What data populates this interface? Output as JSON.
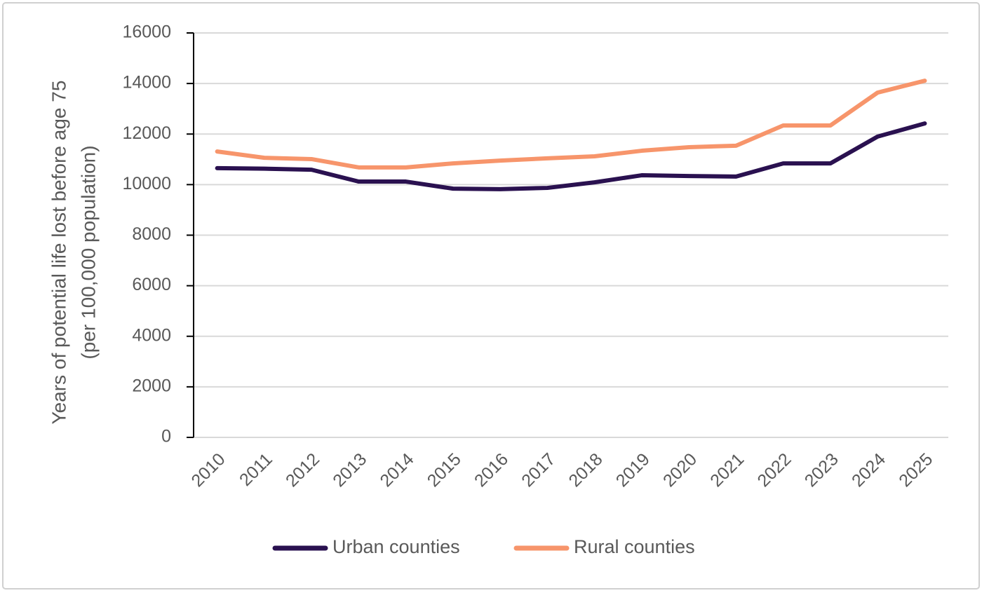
{
  "chart_data": {
    "type": "line",
    "ylabel": [
      "Years of potential life lost before age 75",
      "(per 100,000 population)"
    ],
    "categories": [
      "2010",
      "2011",
      "2012",
      "2013",
      "2014",
      "2015",
      "2016",
      "2017",
      "2018",
      "2019",
      "2020",
      "2021",
      "2022",
      "2023",
      "2024",
      "2025"
    ],
    "series": [
      {
        "name": "Urban counties",
        "color": "#2a1150",
        "values": [
          10650,
          10630,
          10590,
          10120,
          10120,
          9840,
          9820,
          9870,
          10090,
          10370,
          10340,
          10320,
          10840,
          10840,
          11900,
          12420
        ]
      },
      {
        "name": "Rural counties",
        "color": "#f7956b",
        "values": [
          11310,
          11060,
          11010,
          10680,
          10680,
          10840,
          10950,
          11040,
          11120,
          11340,
          11480,
          11540,
          12340,
          12340,
          13640,
          14110
        ]
      }
    ],
    "ylim": [
      0,
      16000
    ],
    "yticks": [
      0,
      2000,
      4000,
      6000,
      8000,
      10000,
      12000,
      14000,
      16000
    ],
    "grid": true,
    "legend": "bottom"
  }
}
